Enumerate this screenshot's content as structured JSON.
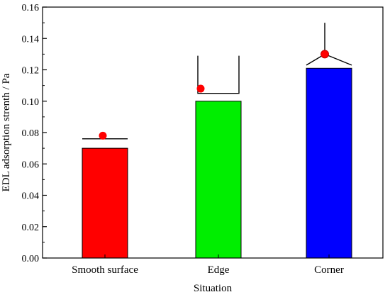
{
  "chart_data": {
    "type": "bar",
    "categories": [
      "Smooth surface",
      "Edge",
      "Corner"
    ],
    "series": [
      {
        "values": [
          0.07,
          0.1,
          0.121
        ],
        "colors": [
          "#ff0000",
          "#00ee00",
          "#0000ff"
        ]
      }
    ],
    "markers": [
      0.078,
      0.108,
      0.13
    ],
    "marker_color": "#ff0000",
    "error_upper": [
      0.076,
      0.129,
      0.15
    ],
    "error_lower": [
      null,
      0.105,
      0.123
    ],
    "xlabel": "Situation",
    "ylabel": "EDL adsorption strenth  /  Pa",
    "ylim": [
      0.0,
      0.16
    ],
    "yticks": [
      "0.00",
      "0.02",
      "0.04",
      "0.06",
      "0.08",
      "0.10",
      "0.12",
      "0.14",
      "0.16"
    ],
    "grid": false,
    "legend": false
  }
}
